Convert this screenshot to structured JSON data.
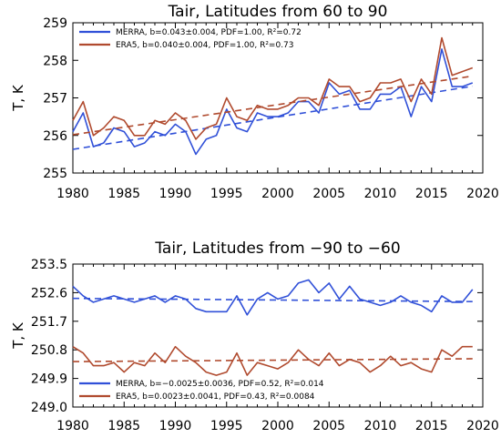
{
  "colors": {
    "merra": "#3050d8",
    "era5": "#b04a2e"
  },
  "chart_data": [
    {
      "type": "line",
      "title": "Tair, Latitudes from 60 to 90",
      "ylabel": "T, K",
      "xlabel": "",
      "xlim": [
        1980,
        2020
      ],
      "ylim": [
        255,
        259
      ],
      "xticks": [
        1980,
        1985,
        1990,
        1995,
        2000,
        2005,
        2010,
        2015,
        2020
      ],
      "yticks": [
        255,
        256,
        257,
        258,
        259
      ],
      "grid": false,
      "legend_position": "top-left",
      "x": [
        1980,
        1981,
        1982,
        1983,
        1984,
        1985,
        1986,
        1987,
        1988,
        1989,
        1990,
        1991,
        1992,
        1993,
        1994,
        1995,
        1996,
        1997,
        1998,
        1999,
        2000,
        2001,
        2002,
        2003,
        2004,
        2005,
        2006,
        2007,
        2008,
        2009,
        2010,
        2011,
        2012,
        2013,
        2014,
        2015,
        2016,
        2017,
        2018,
        2019
      ],
      "series": [
        {
          "name": "MERRA",
          "legend": "MERRA, b=0.043±0.004, PDF=1.00, R²=0.72",
          "color": "#3050d8",
          "values": [
            256.1,
            256.6,
            255.7,
            255.8,
            256.2,
            256.1,
            255.7,
            255.8,
            256.1,
            256.0,
            256.3,
            256.1,
            255.5,
            255.9,
            256.0,
            256.7,
            256.2,
            256.1,
            256.6,
            256.5,
            256.5,
            256.6,
            256.9,
            256.9,
            256.6,
            257.4,
            257.1,
            257.2,
            256.7,
            256.7,
            257.1,
            257.1,
            257.3,
            256.5,
            257.3,
            256.9,
            258.3,
            257.3,
            257.3,
            257.4
          ],
          "trend": [
            255.63,
            257.31
          ]
        },
        {
          "name": "ERA5",
          "legend": "ERA5,   b=0.040±0.004, PDF=1.00, R²=0.73",
          "color": "#b04a2e",
          "values": [
            256.4,
            256.9,
            256.0,
            256.2,
            256.5,
            256.4,
            256.0,
            256.0,
            256.4,
            256.3,
            256.6,
            256.4,
            255.9,
            256.2,
            256.3,
            257.0,
            256.5,
            256.4,
            256.8,
            256.7,
            256.7,
            256.8,
            257.0,
            257.0,
            256.8,
            257.5,
            257.3,
            257.3,
            256.9,
            257.0,
            257.4,
            257.4,
            257.5,
            256.9,
            257.5,
            257.1,
            258.6,
            257.6,
            257.7,
            257.8
          ],
          "trend": [
            256.02,
            257.58
          ]
        }
      ]
    },
    {
      "type": "line",
      "title": "Tair, Latitudes from −90 to −60",
      "ylabel": "T, K",
      "xlabel": "",
      "xlim": [
        1980,
        2020
      ],
      "ylim": [
        249.0,
        253.5
      ],
      "xticks": [
        1980,
        1985,
        1990,
        1995,
        2000,
        2005,
        2010,
        2015,
        2020
      ],
      "yticks": [
        "249.0",
        "249.9",
        "250.8",
        "251.7",
        "252.6",
        "253.5"
      ],
      "grid": false,
      "legend_position": "bottom-left",
      "x": [
        1980,
        1981,
        1982,
        1983,
        1984,
        1985,
        1986,
        1987,
        1988,
        1989,
        1990,
        1991,
        1992,
        1993,
        1994,
        1995,
        1996,
        1997,
        1998,
        1999,
        2000,
        2001,
        2002,
        2003,
        2004,
        2005,
        2006,
        2007,
        2008,
        2009,
        2010,
        2011,
        2012,
        2013,
        2014,
        2015,
        2016,
        2017,
        2018,
        2019
      ],
      "series": [
        {
          "name": "MERRA",
          "legend": "MERRA, b=−0.0025±0.0036, PDF=0.52, R²=0.014",
          "color": "#3050d8",
          "values": [
            252.8,
            252.5,
            252.3,
            252.4,
            252.5,
            252.4,
            252.3,
            252.4,
            252.5,
            252.3,
            252.5,
            252.4,
            252.1,
            252.0,
            252.0,
            252.0,
            252.5,
            251.9,
            252.4,
            252.6,
            252.4,
            252.5,
            252.9,
            253.0,
            252.6,
            252.9,
            252.4,
            252.8,
            252.4,
            252.3,
            252.2,
            252.3,
            252.5,
            252.3,
            252.2,
            252.0,
            252.5,
            252.3,
            252.3,
            252.7
          ],
          "trend": [
            252.42,
            252.32
          ]
        },
        {
          "name": "ERA5",
          "legend": "ERA5,   b=0.0023±0.0041, PDF=0.43, R²=0.0084",
          "color": "#b04a2e",
          "values": [
            250.9,
            250.7,
            250.3,
            250.3,
            250.4,
            250.1,
            250.4,
            250.3,
            250.7,
            250.4,
            250.9,
            250.6,
            250.4,
            250.1,
            250.0,
            250.1,
            250.7,
            250.0,
            250.4,
            250.3,
            250.2,
            250.4,
            250.8,
            250.5,
            250.3,
            250.7,
            250.3,
            250.5,
            250.4,
            250.1,
            250.3,
            250.6,
            250.3,
            250.4,
            250.2,
            250.1,
            250.8,
            250.6,
            250.9,
            250.9
          ],
          "trend": [
            250.43,
            250.52
          ]
        }
      ]
    }
  ]
}
